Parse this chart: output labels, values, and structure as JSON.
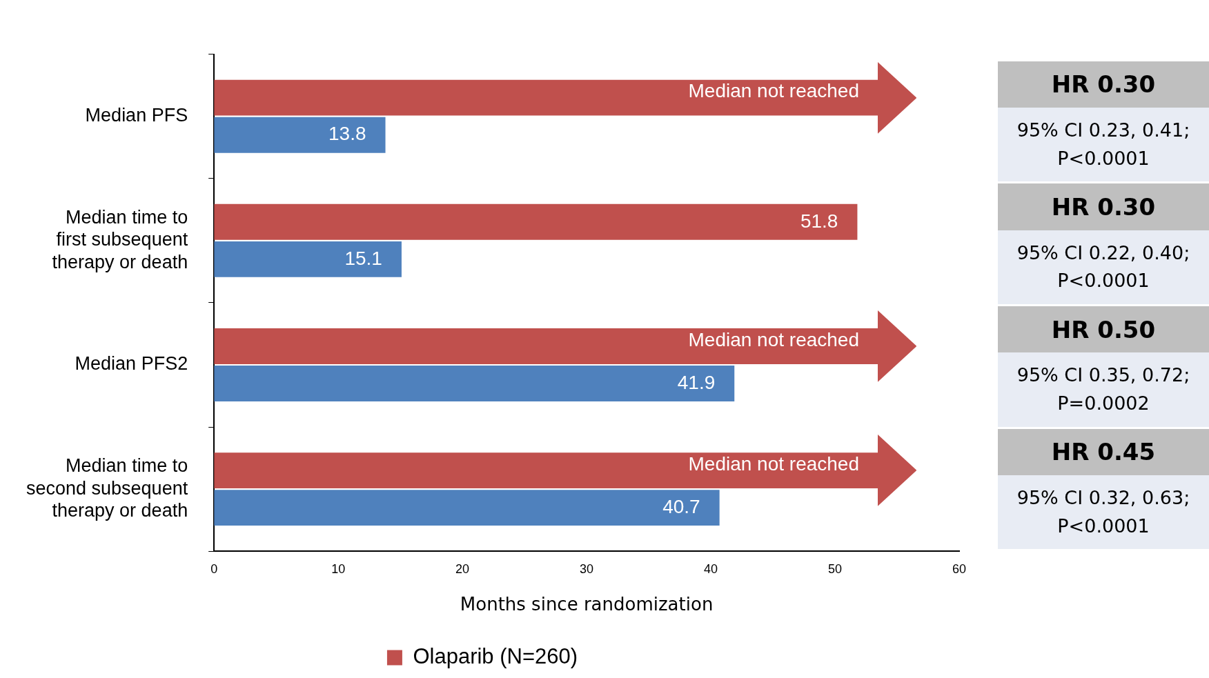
{
  "chart_data": {
    "type": "bar",
    "orientation": "horizontal",
    "categories": [
      "Median PFS",
      "Median time to first subsequent therapy or death",
      "Median PFS2",
      "Median time to second subsequent therapy or death"
    ],
    "series": [
      {
        "name": "Olaparib (N=260)",
        "color": "#c0504d",
        "values": [
          53.5,
          51.8,
          53.5,
          53.5
        ],
        "value_labels": [
          "Median not reached",
          "51.8",
          "Median not reached",
          "Median not reached"
        ]
      },
      {
        "color": "#4f81bd",
        "values": [
          13.8,
          15.1,
          41.9,
          40.7
        ],
        "value_labels": [
          "13.8",
          "15.1",
          "41.9",
          "40.7"
        ]
      }
    ],
    "xlim": [
      0,
      60
    ],
    "xticks": [
      0,
      10,
      20,
      30,
      40,
      50,
      60
    ],
    "xlabel": "Months since randomization",
    "legend": "bottom",
    "grid": false,
    "annotations": [
      "HR 0.30",
      "95% CI 0.23, 0.41; P<0.0001",
      "HR 0.30",
      "95% CI 0.22, 0.40; P<0.0001",
      "HR 0.50",
      "95% CI 0.35, 0.72; P=0.0002",
      "HR 0.45",
      "95% CI 0.32, 0.63; P<0.0001"
    ]
  }
}
